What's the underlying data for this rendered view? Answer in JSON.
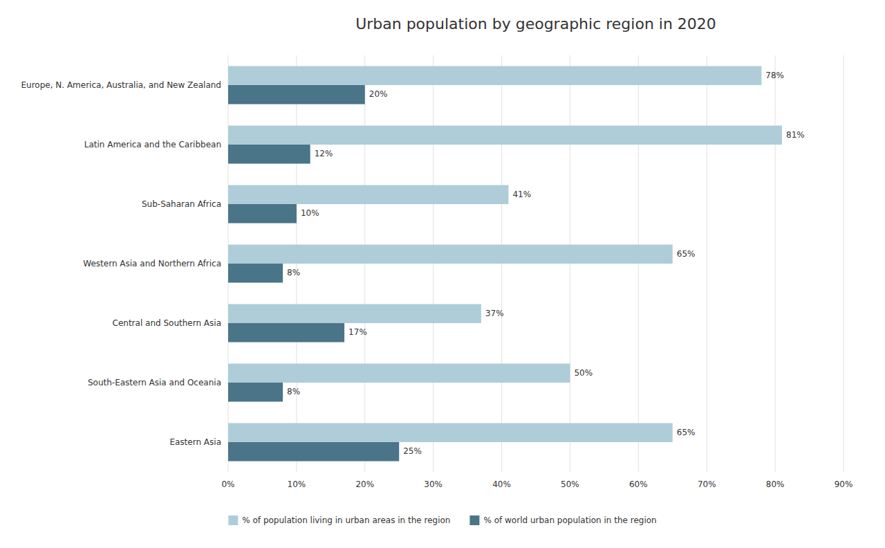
{
  "chart_data": {
    "type": "bar",
    "orientation": "horizontal",
    "title": "Urban population by geographic region in 2020",
    "categories": [
      "Europe, N. America, Australia, and New Zealand",
      "Latin America and the Caribbean",
      "Sub-Saharan Africa",
      "Western Asia and Northern Africa",
      "Central and Southern Asia",
      "South-Eastern Asia and Oceania",
      "Eastern Asia"
    ],
    "series": [
      {
        "name": "% of population living in urban areas in the region",
        "color": "#aecdd8",
        "values": [
          78,
          81,
          41,
          65,
          37,
          50,
          65
        ],
        "value_labels": [
          "78%",
          "81%",
          "41%",
          "65%",
          "37%",
          "50%",
          "65%"
        ]
      },
      {
        "name": "% of world urban population in the region",
        "color": "#4a7488",
        "values": [
          20,
          12,
          10,
          8,
          17,
          8,
          25
        ],
        "value_labels": [
          "20%",
          "12%",
          "10%",
          "8%",
          "17%",
          "8%",
          "25%"
        ]
      }
    ],
    "xlim": [
      0,
      90
    ],
    "xticks": [
      {
        "value": 0,
        "label": "0%"
      },
      {
        "value": 10,
        "label": "10%"
      },
      {
        "value": 20,
        "label": "20%"
      },
      {
        "value": 30,
        "label": "30%"
      },
      {
        "value": 40,
        "label": "40%"
      },
      {
        "value": 50,
        "label": "50%"
      },
      {
        "value": 60,
        "label": "60%"
      },
      {
        "value": 70,
        "label": "70%"
      },
      {
        "value": 80,
        "label": "80%"
      },
      {
        "value": 90,
        "label": "90%"
      }
    ],
    "grid": true,
    "data_labels": true,
    "legend": "bottom"
  }
}
